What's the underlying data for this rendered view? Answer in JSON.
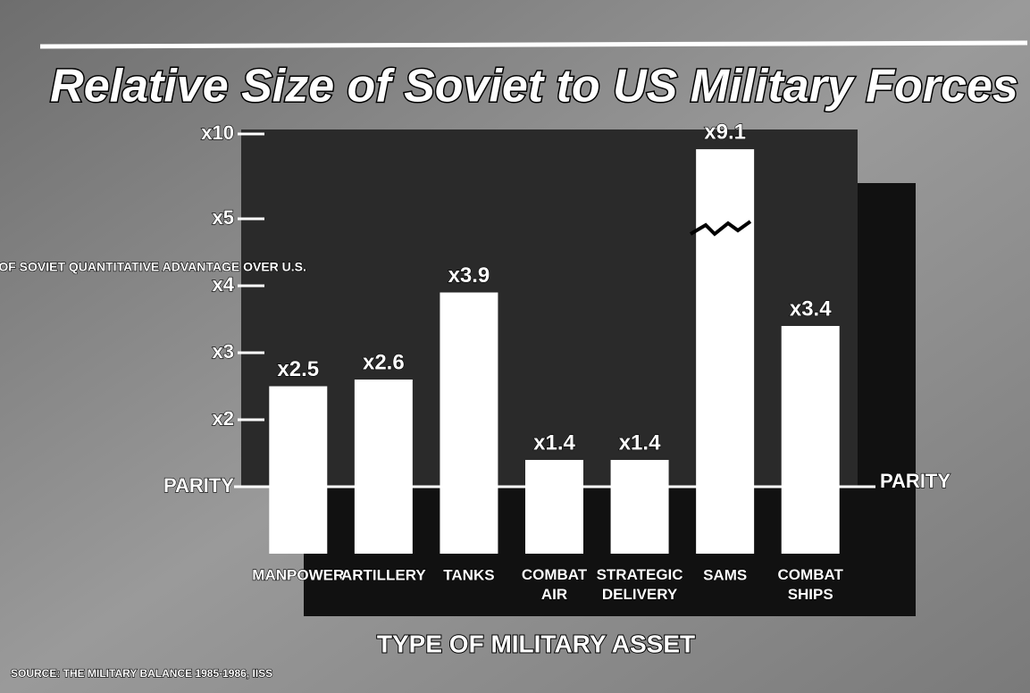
{
  "chart_data": {
    "type": "bar",
    "title": "Relative Size of Soviet to US Military Forces",
    "y_label": "FACTOR OF SOVIET QUANTITATIVE ADVANTAGE OVER U.S.",
    "x_label": "TYPE OF MILITARY ASSET",
    "annotations": [
      "PARITY"
    ],
    "source": "SOURCE: THE MILITARY BALANCE 1985-1986, IISS",
    "categories": [
      "MANPOWER",
      "ARTILLERY",
      "TANKS",
      "COMBAT AIR",
      "STRATEGIC DELIVERY",
      "SAMS",
      "COMBAT SHIPS"
    ],
    "values": [
      2.5,
      2.6,
      3.9,
      1.4,
      1.4,
      9.1,
      3.4
    ],
    "value_labels": [
      "x2.5",
      "x2.6",
      "x3.9",
      "x1.4",
      "x1.4",
      "x9.1",
      "x3.4"
    ],
    "color": "#ffffff",
    "ylim": [
      1,
      10
    ],
    "yticks": [
      {
        "value": 1,
        "label": "PARITY"
      },
      {
        "value": 2,
        "label": "x2"
      },
      {
        "value": 3,
        "label": "x3"
      },
      {
        "value": 4,
        "label": "x4"
      },
      {
        "value": 5,
        "label": "x5"
      },
      {
        "value": 10,
        "label": "x10"
      }
    ]
  }
}
